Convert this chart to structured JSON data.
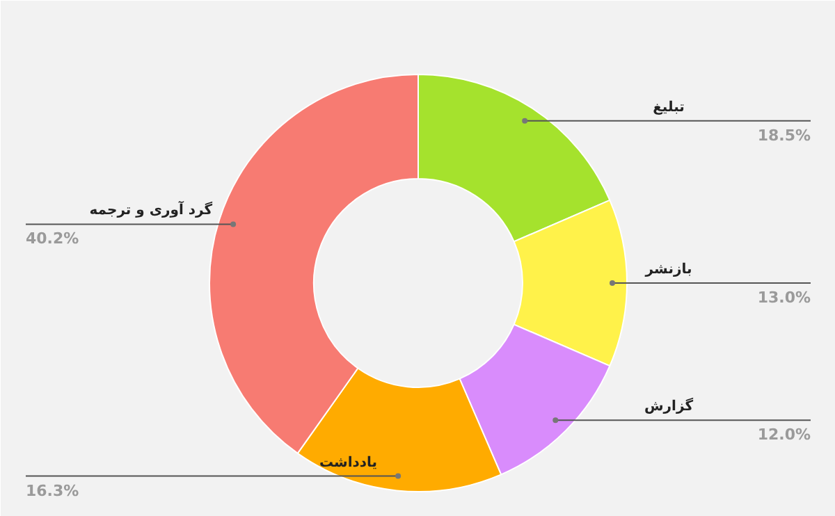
{
  "chart_data": {
    "type": "donut",
    "categories": [
      "تبلیغ",
      "بازنشر",
      "گزارش",
      "یادداشت",
      "گرد آوری و ترجمه"
    ],
    "values": [
      18.5,
      13.0,
      12.0,
      16.3,
      40.2
    ],
    "colors": [
      "#a5e22d",
      "#fff24a",
      "#d98cfc",
      "#ffab00",
      "#f77b72"
    ],
    "value_labels": [
      "18.5%",
      "13.0%",
      "12.0%",
      "16.3%",
      "40.2%"
    ]
  }
}
